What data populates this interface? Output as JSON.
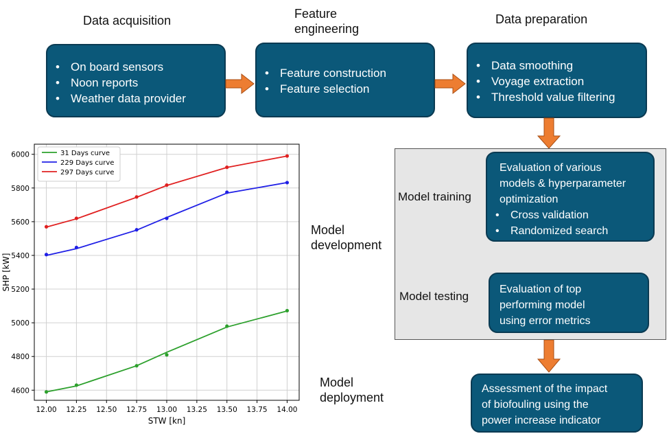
{
  "stages": {
    "acquisition": {
      "heading": "Data acquisition",
      "items": [
        "On board sensors",
        "Noon reports",
        "Weather data provider"
      ]
    },
    "feature": {
      "heading_line1": "Feature",
      "heading_line2": "engineering",
      "items": [
        "Feature construction",
        "Feature selection"
      ]
    },
    "preparation": {
      "heading": "Data preparation",
      "items": [
        "Data smoothing",
        "Voyage extraction",
        "Threshold value filtering"
      ]
    }
  },
  "development": {
    "label_line1": "Model",
    "label_line2": "development",
    "training": {
      "label": "Model training",
      "text_lines": [
        "Evaluation of various",
        "models & hyperparameter",
        "optimization"
      ],
      "items": [
        "Cross validation",
        "Randomized search"
      ]
    },
    "testing": {
      "label": "Model testing",
      "text_lines": [
        "Evaluation of top",
        "performing model",
        "using error metrics"
      ]
    }
  },
  "deployment": {
    "label_line1": "Model",
    "label_line2": "deployment",
    "text_lines": [
      "Assessment of the impact",
      "of biofouling using the",
      "power increase indicator"
    ]
  },
  "colors": {
    "box_fill": "#0b5879",
    "arrow": "#ed7d31",
    "grey_panel": "#e6e6e6"
  },
  "chart_data": {
    "type": "line",
    "xlabel": "STW [kn]",
    "ylabel": "SHP [kW]",
    "xlim": [
      11.9,
      14.1
    ],
    "ylim": [
      4540,
      6060
    ],
    "xticks": [
      "12.00",
      "12.25",
      "12.50",
      "12.75",
      "13.00",
      "13.25",
      "13.50",
      "13.75",
      "14.00"
    ],
    "yticks": [
      "4600",
      "4800",
      "5000",
      "5200",
      "5400",
      "5600",
      "5800",
      "6000"
    ],
    "grid": true,
    "legend_placement": "top-left",
    "series": [
      {
        "name": "31 Days curve",
        "color": "#2ca02c",
        "line": [
          [
            12.0,
            4590
          ],
          [
            12.25,
            4625
          ],
          [
            12.75,
            4745
          ],
          [
            13.0,
            4825
          ],
          [
            13.5,
            4975
          ],
          [
            14.0,
            5070
          ]
        ],
        "points": [
          [
            12.0,
            4590
          ],
          [
            12.25,
            4630
          ],
          [
            12.75,
            4745
          ],
          [
            13.0,
            4810
          ],
          [
            13.5,
            4980
          ],
          [
            14.0,
            5072
          ]
        ]
      },
      {
        "name": "229 Days curve",
        "color": "#1f1fe6",
        "line": [
          [
            12.0,
            5400
          ],
          [
            12.25,
            5440
          ],
          [
            12.75,
            5550
          ],
          [
            13.0,
            5625
          ],
          [
            13.5,
            5770
          ],
          [
            14.0,
            5832
          ]
        ],
        "points": [
          [
            12.0,
            5405
          ],
          [
            12.25,
            5447
          ],
          [
            12.75,
            5552
          ],
          [
            13.0,
            5620
          ],
          [
            13.5,
            5775
          ],
          [
            14.0,
            5832
          ]
        ]
      },
      {
        "name": "297 Days curve",
        "color": "#e02020",
        "line": [
          [
            12.0,
            5568
          ],
          [
            12.25,
            5617
          ],
          [
            12.75,
            5745
          ],
          [
            13.0,
            5815
          ],
          [
            13.5,
            5922
          ],
          [
            14.0,
            5990
          ]
        ],
        "points": [
          [
            12.0,
            5570
          ],
          [
            12.25,
            5620
          ],
          [
            12.75,
            5747
          ],
          [
            13.0,
            5817
          ],
          [
            13.5,
            5923
          ],
          [
            14.0,
            5990
          ]
        ]
      }
    ]
  }
}
